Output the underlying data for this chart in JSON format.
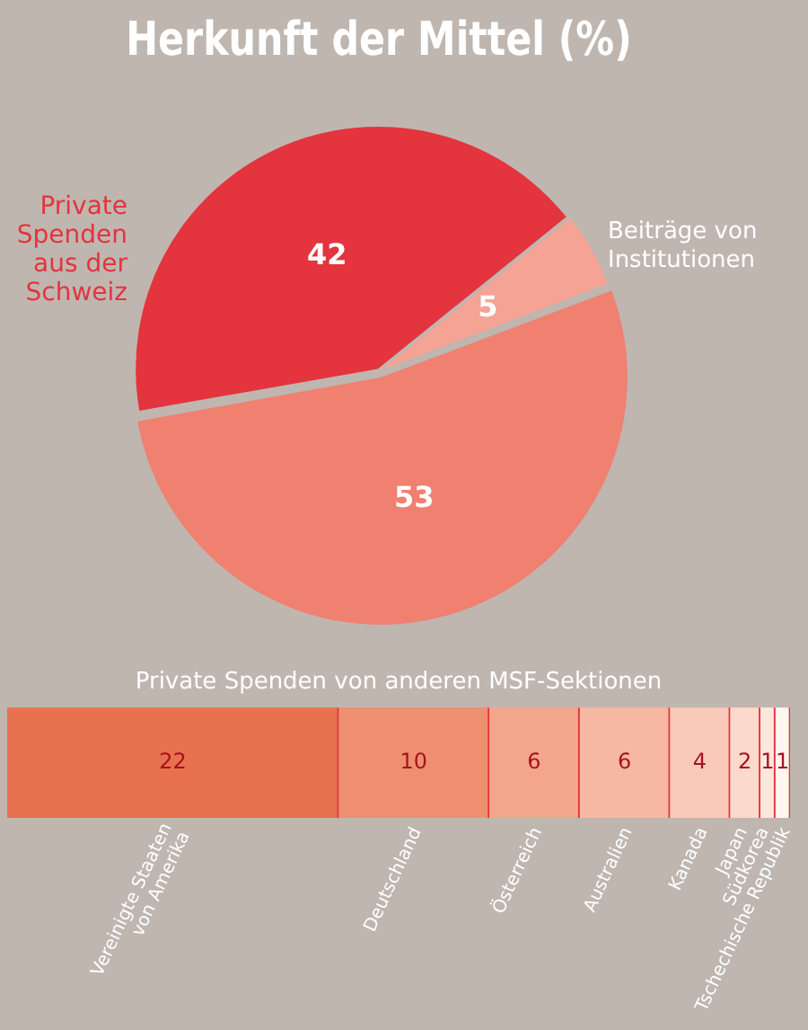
{
  "chart_data": [
    {
      "type": "pie",
      "title": "Herkunft der Mittel (%)",
      "categories": [
        "Private Spenden aus der Schweiz",
        "Beiträge von Institutionen",
        null
      ],
      "values": [
        42,
        5,
        53
      ],
      "colors": [
        "#e4343e",
        "#f4a394",
        "#f08070"
      ],
      "data_labels": true,
      "legend": false
    },
    {
      "type": "bar",
      "title": "Private Spenden von anderen MSF-Sektionen",
      "orientation": "horizontal",
      "stacked": true,
      "categories": [
        null
      ],
      "xlim": [
        0,
        52
      ],
      "tick_labels": false,
      "data_labels": true,
      "legend": false,
      "series": [
        {
          "name": "Vereinigte Staaten von Amerika",
          "color": "#e8714f",
          "values": [
            22
          ]
        },
        {
          "name": "Deutschland",
          "color": "#ee8f70",
          "values": [
            10
          ]
        },
        {
          "name": "Österreich",
          "color": "#f3a68c",
          "values": [
            6
          ]
        },
        {
          "name": "Australien",
          "color": "#f6b7a3",
          "values": [
            6
          ]
        },
        {
          "name": "Kanada",
          "color": "#f9c9b9",
          "values": [
            4
          ]
        },
        {
          "name": "Japan",
          "color": "#fbd9cd",
          "values": [
            2
          ]
        },
        {
          "name": "Südkorea",
          "color": "#fde8e0",
          "values": [
            1
          ]
        },
        {
          "name": "Tschechische Republik",
          "color": "#fff5f1",
          "values": [
            1
          ]
        }
      ]
    }
  ]
}
